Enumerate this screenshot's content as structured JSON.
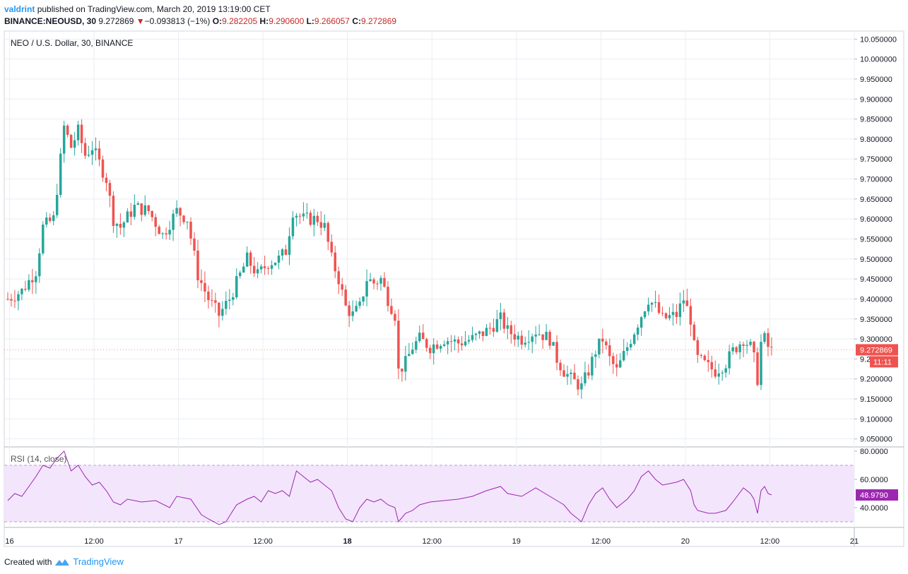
{
  "header": {
    "author": "valdrint",
    "published_text": "published on TradingView.com, March 20, 2019 13:19:00 CET",
    "symbol": "BINANCE:NEOUSD, 30",
    "last": "9.272869",
    "change_arrow": "▼",
    "change": "−0.093813 (−1%)",
    "o_label": "O:",
    "o_value": "9.282205",
    "h_label": "H:",
    "h_value": "9.290600",
    "l_label": "L:",
    "l_value": "9.266057",
    "c_label": "C:",
    "c_value": "9.272869"
  },
  "footer": {
    "created_with": "Created with",
    "brand": "TradingView",
    "logo_icon": "tradingview-cloud-icon"
  },
  "colors": {
    "up": "#26a69a",
    "down": "#ef5350",
    "rsi_line": "#9c27b0",
    "rsi_band": "#f3e5fc",
    "grid": "#e9eef3",
    "price_badge": "#ef5350",
    "rsi_badge": "#9c27b0"
  },
  "chart_data": [
    {
      "type": "candlestick",
      "title": "NEO / U.S. Dollar, 30, BINANCE",
      "ylim": [
        9.03,
        10.07
      ],
      "y_ticks": [
        "10.050000",
        "10.000000",
        "9.950000",
        "9.900000",
        "9.850000",
        "9.800000",
        "9.750000",
        "9.700000",
        "9.650000",
        "9.600000",
        "9.550000",
        "9.500000",
        "9.450000",
        "9.400000",
        "9.350000",
        "9.300000",
        "9.250000",
        "9.200000",
        "9.150000",
        "9.100000",
        "9.050000"
      ],
      "x_ticks": [
        {
          "label": "16",
          "t": 0.5,
          "bold": false
        },
        {
          "label": "12:00",
          "t": 24.5,
          "bold": false
        },
        {
          "label": "17",
          "t": 48.5,
          "bold": false
        },
        {
          "label": "12:00",
          "t": 72.5,
          "bold": false
        },
        {
          "label": "18",
          "t": 96.5,
          "bold": true
        },
        {
          "label": "12:00",
          "t": 120.5,
          "bold": false
        },
        {
          "label": "19",
          "t": 144.5,
          "bold": false
        },
        {
          "label": "12:00",
          "t": 168.5,
          "bold": false
        },
        {
          "label": "20",
          "t": 192.5,
          "bold": false
        },
        {
          "label": "12:00",
          "t": 216.5,
          "bold": false
        },
        {
          "label": "21",
          "t": 240.5,
          "bold": false
        }
      ],
      "x_range": [
        -1.0,
        240.5
      ],
      "last_price_label": "9.272869",
      "countdown_label": "11:11",
      "close_anchors": [
        [
          0,
          9.4
        ],
        [
          4,
          9.42
        ],
        [
          8,
          9.47
        ],
        [
          10,
          9.58
        ],
        [
          13,
          9.6
        ],
        [
          15,
          9.75
        ],
        [
          16,
          9.83
        ],
        [
          18,
          9.78
        ],
        [
          20,
          9.82
        ],
        [
          22,
          9.76
        ],
        [
          24,
          9.78
        ],
        [
          26,
          9.74
        ],
        [
          28,
          9.7
        ],
        [
          30,
          9.6
        ],
        [
          32,
          9.58
        ],
        [
          36,
          9.63
        ],
        [
          40,
          9.62
        ],
        [
          44,
          9.56
        ],
        [
          48,
          9.62
        ],
        [
          51,
          9.6
        ],
        [
          54,
          9.46
        ],
        [
          57,
          9.4
        ],
        [
          60,
          9.36
        ],
        [
          63,
          9.4
        ],
        [
          66,
          9.46
        ],
        [
          68,
          9.5
        ],
        [
          71,
          9.46
        ],
        [
          74,
          9.49
        ],
        [
          77,
          9.5
        ],
        [
          79,
          9.52
        ],
        [
          81,
          9.62
        ],
        [
          84,
          9.6
        ],
        [
          88,
          9.6
        ],
        [
          90,
          9.58
        ],
        [
          92,
          9.5
        ],
        [
          94,
          9.45
        ],
        [
          96,
          9.38
        ],
        [
          98,
          9.36
        ],
        [
          100,
          9.38
        ],
        [
          102,
          9.45
        ],
        [
          104,
          9.44
        ],
        [
          106,
          9.45
        ],
        [
          108,
          9.4
        ],
        [
          110,
          9.36
        ],
        [
          111,
          9.22
        ],
        [
          113,
          9.24
        ],
        [
          115,
          9.28
        ],
        [
          117,
          9.3
        ],
        [
          120,
          9.28
        ],
        [
          124,
          9.3
        ],
        [
          128,
          9.29
        ],
        [
          132,
          9.3
        ],
        [
          136,
          9.32
        ],
        [
          140,
          9.35
        ],
        [
          142,
          9.32
        ],
        [
          146,
          9.3
        ],
        [
          150,
          9.32
        ],
        [
          154,
          9.3
        ],
        [
          156,
          9.25
        ],
        [
          158,
          9.22
        ],
        [
          160,
          9.2
        ],
        [
          163,
          9.18
        ],
        [
          165,
          9.22
        ],
        [
          167,
          9.27
        ],
        [
          169,
          9.3
        ],
        [
          171,
          9.25
        ],
        [
          173,
          9.22
        ],
        [
          176,
          9.28
        ],
        [
          178,
          9.32
        ],
        [
          180,
          9.36
        ],
        [
          182,
          9.4
        ],
        [
          184,
          9.38
        ],
        [
          186,
          9.35
        ],
        [
          190,
          9.36
        ],
        [
          192,
          9.4
        ],
        [
          194,
          9.35
        ],
        [
          195,
          9.28
        ],
        [
          196,
          9.25
        ],
        [
          199,
          9.23
        ],
        [
          201,
          9.22
        ],
        [
          204,
          9.24
        ],
        [
          206,
          9.27
        ],
        [
          209,
          9.3
        ],
        [
          211,
          9.28
        ],
        [
          212,
          9.25
        ],
        [
          213,
          9.2
        ],
        [
          214,
          9.29
        ],
        [
          215,
          9.3
        ],
        [
          216,
          9.28
        ],
        [
          217,
          9.27
        ]
      ]
    },
    {
      "type": "line",
      "title": "RSI (14, close)",
      "ylim": [
        26,
        83
      ],
      "y_ticks": [
        "80.0000",
        "60.0000",
        "40.0000"
      ],
      "band": [
        30,
        70
      ],
      "last_value_label": "48.9790",
      "points": [
        [
          0,
          45
        ],
        [
          2,
          50
        ],
        [
          4,
          48
        ],
        [
          6,
          55
        ],
        [
          8,
          62
        ],
        [
          10,
          70
        ],
        [
          12,
          68
        ],
        [
          14,
          75
        ],
        [
          16,
          80
        ],
        [
          18,
          66
        ],
        [
          20,
          70
        ],
        [
          22,
          62
        ],
        [
          24,
          56
        ],
        [
          26,
          58
        ],
        [
          28,
          52
        ],
        [
          30,
          44
        ],
        [
          32,
          42
        ],
        [
          34,
          46
        ],
        [
          38,
          44
        ],
        [
          42,
          45
        ],
        [
          46,
          40
        ],
        [
          48,
          48
        ],
        [
          52,
          46
        ],
        [
          55,
          35
        ],
        [
          57,
          32
        ],
        [
          60,
          28
        ],
        [
          62,
          30
        ],
        [
          65,
          42
        ],
        [
          68,
          46
        ],
        [
          70,
          48
        ],
        [
          72,
          44
        ],
        [
          74,
          52
        ],
        [
          76,
          50
        ],
        [
          78,
          52
        ],
        [
          80,
          48
        ],
        [
          82,
          66
        ],
        [
          84,
          62
        ],
        [
          86,
          58
        ],
        [
          88,
          60
        ],
        [
          90,
          56
        ],
        [
          92,
          52
        ],
        [
          94,
          40
        ],
        [
          96,
          32
        ],
        [
          98,
          30
        ],
        [
          100,
          40
        ],
        [
          102,
          46
        ],
        [
          104,
          44
        ],
        [
          106,
          46
        ],
        [
          108,
          42
        ],
        [
          110,
          40
        ],
        [
          111,
          30
        ],
        [
          113,
          36
        ],
        [
          115,
          38
        ],
        [
          117,
          42
        ],
        [
          120,
          44
        ],
        [
          124,
          45
        ],
        [
          128,
          46
        ],
        [
          132,
          48
        ],
        [
          136,
          52
        ],
        [
          140,
          55
        ],
        [
          142,
          50
        ],
        [
          146,
          48
        ],
        [
          150,
          54
        ],
        [
          154,
          48
        ],
        [
          156,
          45
        ],
        [
          158,
          42
        ],
        [
          160,
          36
        ],
        [
          163,
          30
        ],
        [
          165,
          42
        ],
        [
          167,
          50
        ],
        [
          169,
          54
        ],
        [
          171,
          46
        ],
        [
          173,
          40
        ],
        [
          176,
          46
        ],
        [
          178,
          52
        ],
        [
          180,
          62
        ],
        [
          182,
          66
        ],
        [
          184,
          60
        ],
        [
          186,
          56
        ],
        [
          190,
          58
        ],
        [
          192,
          60
        ],
        [
          194,
          52
        ],
        [
          195,
          42
        ],
        [
          196,
          38
        ],
        [
          199,
          36
        ],
        [
          201,
          36
        ],
        [
          204,
          38
        ],
        [
          206,
          44
        ],
        [
          209,
          54
        ],
        [
          211,
          50
        ],
        [
          212,
          46
        ],
        [
          213,
          36
        ],
        [
          214,
          52
        ],
        [
          215,
          55
        ],
        [
          216,
          50
        ],
        [
          217,
          49
        ]
      ]
    }
  ]
}
